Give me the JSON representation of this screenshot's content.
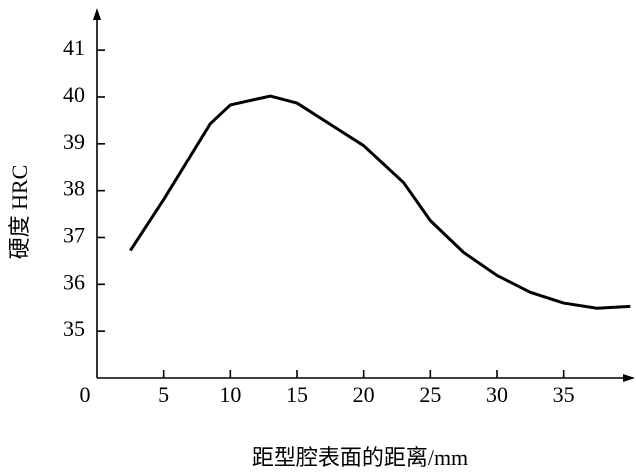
{
  "chart_data": {
    "type": "line",
    "x_label": "距型腔表面的距离/mm",
    "y_label": "硬度 HRC",
    "x": [
      2.5,
      5,
      8.5,
      10,
      13,
      15,
      20,
      23,
      25,
      27.5,
      30,
      32.5,
      35,
      37.5,
      40
    ],
    "series": [
      {
        "color": "#000000",
        "values": [
          36.72,
          37.81,
          39.43,
          39.83,
          40.02,
          39.87,
          38.96,
          38.17,
          37.36,
          36.68,
          36.19,
          35.83,
          35.6,
          35.49,
          35.53
        ]
      }
    ],
    "xlim": [
      0,
      40.5
    ],
    "ylim": [
      34,
      41.9
    ],
    "xticks": [
      0,
      5,
      10,
      15,
      20,
      25,
      30,
      35
    ],
    "yticks": [
      35,
      36,
      37,
      38,
      39,
      40,
      41
    ],
    "grid": false
  }
}
